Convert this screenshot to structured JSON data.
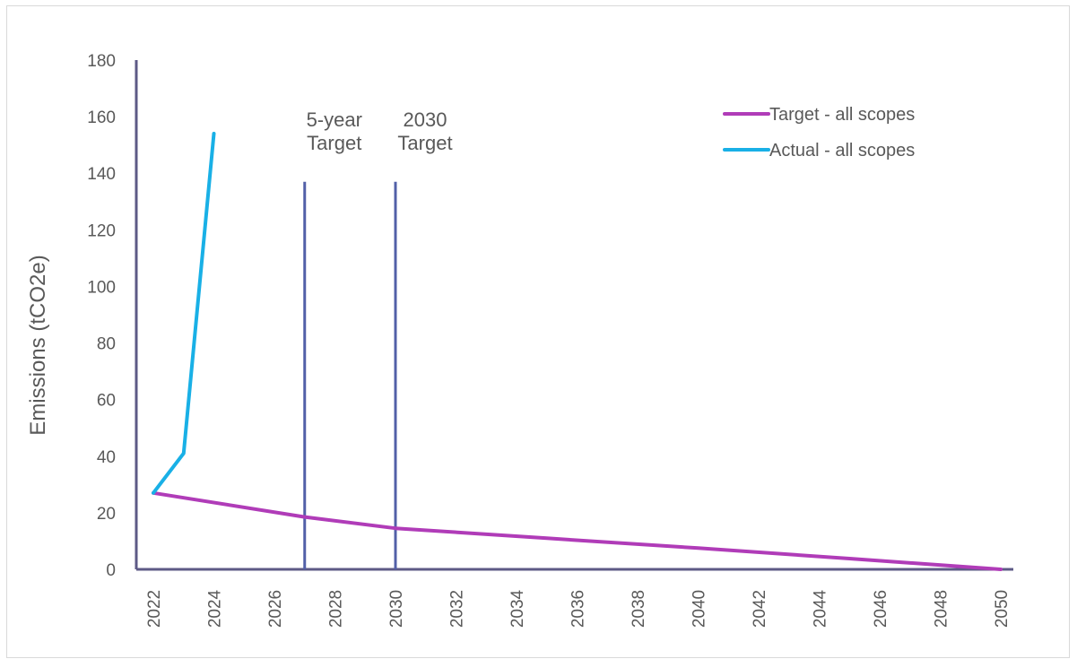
{
  "chart_data": {
    "type": "line",
    "title": "",
    "xlabel": "",
    "ylabel": "Emissions (tCO2e)",
    "xlim": [
      2022,
      2050
    ],
    "ylim": [
      0,
      180
    ],
    "x_ticks": [
      "2022",
      "2024",
      "2026",
      "2028",
      "2030",
      "2032",
      "2034",
      "2036",
      "2038",
      "2040",
      "2042",
      "2044",
      "2046",
      "2048",
      "2050"
    ],
    "y_ticks": [
      "0",
      "20",
      "40",
      "60",
      "80",
      "100",
      "120",
      "140",
      "160",
      "180"
    ],
    "grid": false,
    "legend_position": "top-right",
    "series": [
      {
        "name": "Target - all scopes",
        "color": "#b03cb8",
        "points": [
          [
            2022,
            27
          ],
          [
            2027,
            18.5
          ],
          [
            2030,
            14.5
          ],
          [
            2035,
            11
          ],
          [
            2040,
            7.5
          ],
          [
            2045,
            3.8
          ],
          [
            2050,
            0
          ]
        ]
      },
      {
        "name": "Actual - all scopes",
        "color": "#19b0e6",
        "points": [
          [
            2022,
            27
          ],
          [
            2023,
            41
          ],
          [
            2024,
            154
          ]
        ]
      }
    ],
    "annotations": [
      {
        "label_line1": "5-year",
        "label_line2": "Target",
        "x": 2027,
        "y_top": 137,
        "color": "#5260a8"
      },
      {
        "label_line1": "2030",
        "label_line2": "Target",
        "x": 2030,
        "y_top": 137,
        "color": "#5260a8"
      }
    ],
    "axis_color": "#5d5a86"
  }
}
